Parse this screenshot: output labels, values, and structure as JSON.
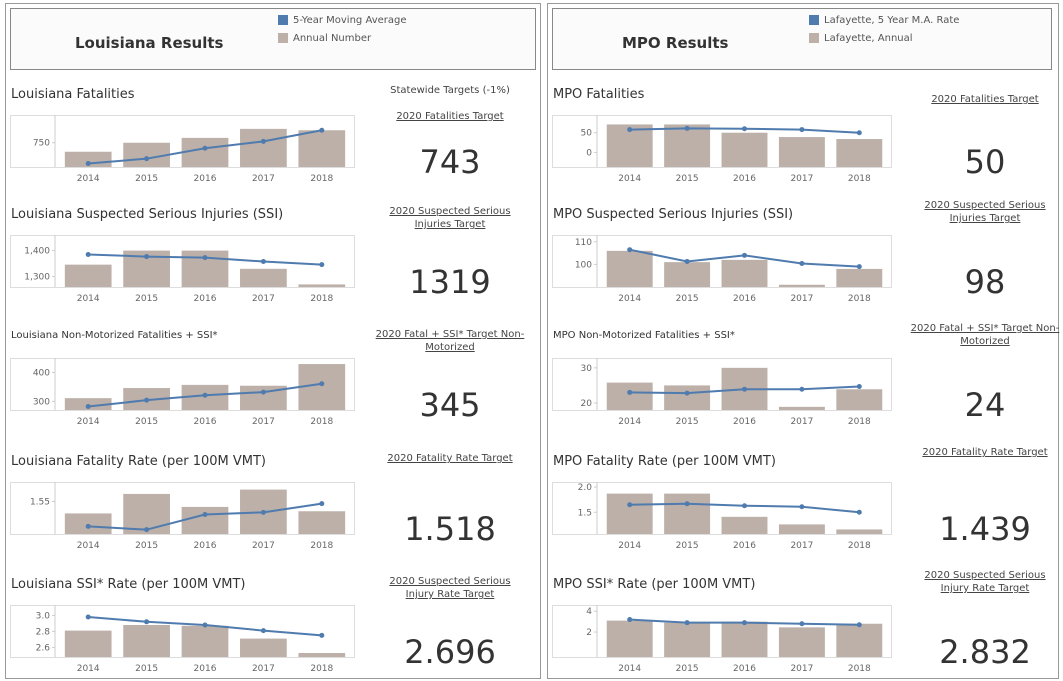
{
  "sides": [
    {
      "title": "Louisiana Results",
      "legend": [
        {
          "name": "5-Year Moving Average",
          "color": "#4f7bae"
        },
        {
          "name": "Annual Number",
          "color": "#bcb0a9"
        }
      ],
      "targets_heading": "Statewide Targets (-1%)"
    },
    {
      "title": "MPO Results",
      "legend": [
        {
          "name": "Lafayette, 5 Year M.A. Rate",
          "color": "#4f7bae"
        },
        {
          "name": "Lafayette, Annual",
          "color": "#bcb0a9"
        }
      ]
    }
  ],
  "chart_data": [
    {
      "type": "combo",
      "title": "Louisiana Fatalities",
      "categories": [
        "2014",
        "2015",
        "2016",
        "2017",
        "2018"
      ],
      "series": [
        {
          "type": "bar",
          "color": "#bcb0a9",
          "values": [
            737,
            750,
            757,
            770,
            768
          ]
        },
        {
          "type": "line",
          "color": "#4f7bae",
          "values": [
            720,
            727,
            742,
            752,
            768
          ]
        }
      ],
      "ylim": [
        715,
        790
      ],
      "yticks": [
        750
      ],
      "target_label": "2020 Fatalities Target",
      "target": 743
    },
    {
      "type": "combo",
      "title": "Louisiana Suspected Serious Injuries (SSI)",
      "categories": [
        "2014",
        "2015",
        "2016",
        "2017",
        "2018"
      ],
      "series": [
        {
          "type": "bar",
          "color": "#bcb0a9",
          "values": [
            1346,
            1400,
            1400,
            1330,
            1270
          ]
        },
        {
          "type": "line",
          "color": "#4f7bae",
          "values": [
            1385,
            1377,
            1373,
            1358,
            1346
          ]
        }
      ],
      "ylim": [
        1260,
        1460
      ],
      "yticks": [
        {
          "value": 1300,
          "label": "1,300"
        },
        {
          "value": 1400,
          "label": "1,400"
        }
      ],
      "target_label": "2020 Suspected Serious Injuries Target",
      "target": 1319
    },
    {
      "type": "combo",
      "title": "Louisiana Non-Motorized Fatalities + SSI*",
      "categories": [
        "2014",
        "2015",
        "2016",
        "2017",
        "2018"
      ],
      "series": [
        {
          "type": "bar",
          "color": "#bcb0a9",
          "values": [
            311,
            346,
            357,
            354,
            429
          ]
        },
        {
          "type": "line",
          "color": "#4f7bae",
          "values": [
            282,
            304,
            321,
            332,
            361
          ]
        }
      ],
      "ylim": [
        270,
        450
      ],
      "yticks": [
        300,
        400
      ],
      "target_label": "2020 Fatal + SSI* Target Non-Motorized",
      "target": 345
    },
    {
      "type": "combo",
      "title": "Louisiana Fatality Rate (per 100M VMT)",
      "categories": [
        "2014",
        "2015",
        "2016",
        "2017",
        "2018"
      ],
      "series": [
        {
          "type": "bar",
          "color": "#bcb0a9",
          "values": [
            1.495,
            1.585,
            1.525,
            1.605,
            1.505
          ]
        },
        {
          "type": "line",
          "color": "#4f7bae",
          "values": [
            1.435,
            1.42,
            1.49,
            1.5,
            1.54
          ]
        }
      ],
      "ylim": [
        1.4,
        1.64
      ],
      "yticks": [
        1.55
      ],
      "target_label": "2020 Fatality Rate Target",
      "target": 1.518
    },
    {
      "type": "combo",
      "title": "Louisiana SSI* Rate (per 100M VMT)",
      "categories": [
        "2014",
        "2015",
        "2016",
        "2017",
        "2018"
      ],
      "series": [
        {
          "type": "bar",
          "color": "#bcb0a9",
          "values": [
            2.81,
            2.88,
            2.87,
            2.71,
            2.53
          ]
        },
        {
          "type": "line",
          "color": "#4f7bae",
          "values": [
            2.98,
            2.92,
            2.88,
            2.81,
            2.75
          ]
        }
      ],
      "ylim": [
        2.48,
        3.13
      ],
      "yticks": [
        2.6,
        2.8,
        {
          "value": 3,
          "label": "3.0"
        }
      ],
      "target_label": "2020 Suspected Serious Injury Rate Target",
      "target": 2.696
    },
    {
      "type": "combo",
      "title": "MPO Fatalities",
      "categories": [
        "2014",
        "2015",
        "2016",
        "2017",
        "2018"
      ],
      "series": [
        {
          "type": "bar",
          "color": "#bcb0a9",
          "values": [
            71,
            71,
            50,
            39,
            34
          ]
        },
        {
          "type": "line",
          "color": "#4f7bae",
          "values": [
            58,
            61,
            60,
            58,
            50
          ]
        }
      ],
      "ylim": [
        -37,
        95
      ],
      "yticks": [
        0,
        50
      ],
      "target_label": "2020 Fatalities Target",
      "target": 50
    },
    {
      "type": "combo",
      "title": "MPO Suspected Serious Injuries (SSI)",
      "categories": [
        "2014",
        "2015",
        "2016",
        "2017",
        "2018"
      ],
      "series": [
        {
          "type": "bar",
          "color": "#bcb0a9",
          "values": [
            106,
            101,
            102,
            91,
            98
          ]
        },
        {
          "type": "line",
          "color": "#4f7bae",
          "values": [
            106.5,
            101.3,
            104,
            100.4,
            99
          ]
        }
      ],
      "ylim": [
        90,
        113
      ],
      "yticks": [
        100,
        110
      ],
      "target_label": "2020 Suspected Serious Injuries Target",
      "target": 98
    },
    {
      "type": "combo",
      "title": "MPO Non-Motorized Fatalities + SSI*",
      "categories": [
        "2014",
        "2015",
        "2016",
        "2017",
        "2018"
      ],
      "series": [
        {
          "type": "bar",
          "color": "#bcb0a9",
          "values": [
            25.8,
            25,
            30,
            18.9,
            23.9
          ]
        },
        {
          "type": "line",
          "color": "#4f7bae",
          "values": [
            23,
            22.8,
            23.9,
            23.9,
            24.7
          ]
        }
      ],
      "ylim": [
        18,
        32.8
      ],
      "yticks": [
        20,
        30
      ],
      "target_label": "2020 Fatal + SSI* Target Non-Motorized",
      "target": 24
    },
    {
      "type": "combo",
      "title": "MPO Fatality Rate (per 100M VMT)",
      "categories": [
        "2014",
        "2015",
        "2016",
        "2017",
        "2018"
      ],
      "series": [
        {
          "type": "bar",
          "color": "#bcb0a9",
          "values": [
            1.87,
            1.87,
            1.41,
            1.26,
            1.16
          ]
        },
        {
          "type": "line",
          "color": "#4f7bae",
          "values": [
            1.65,
            1.67,
            1.63,
            1.61,
            1.5
          ]
        }
      ],
      "ylim": [
        1.07,
        2.1
      ],
      "yticks": [
        1.5,
        {
          "value": 2,
          "label": "2.0"
        }
      ],
      "target_label": "2020 Fatality Rate Target",
      "target": 1.439
    },
    {
      "type": "combo",
      "title": "MPO SSI* Rate (per 100M VMT)",
      "categories": [
        "2014",
        "2015",
        "2016",
        "2017",
        "2018"
      ],
      "series": [
        {
          "type": "bar",
          "color": "#bcb0a9",
          "values": [
            3.1,
            2.9,
            3.0,
            2.45,
            2.8
          ]
        },
        {
          "type": "line",
          "color": "#4f7bae",
          "values": [
            3.2,
            2.9,
            2.9,
            2.8,
            2.7
          ]
        }
      ],
      "ylim": [
        -0.4,
        4.6
      ],
      "yticks": [
        2,
        4
      ],
      "target_label": "2020 Suspected Serious Injury Rate Target",
      "target": 2.832
    }
  ]
}
